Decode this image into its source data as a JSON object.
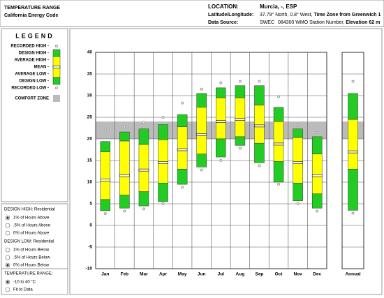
{
  "header": {
    "title": "TEMPERATURE RANGE",
    "subtitle": "California Energy Code",
    "location_label": "LOCATION:",
    "location": "Murcia, -, ESP",
    "latlon_label": "Latitude/Longitude:",
    "latlon": "37.79° North, 0.8° West,",
    "timezone": "Time Zone from Greenwich 1",
    "source_label": "Data Source:",
    "source": "SWEC",
    "station": "084300 WMO Station Number,",
    "elevation": "Elevation 62 m"
  },
  "legend": {
    "title": "LEGEND"
  },
  "controls": {
    "design_high": {
      "label": "DESIGN HIGH: Residential",
      "options": [
        "1% of Hours Above",
        ".5% of Hours Above",
        "0% of Hours Above"
      ],
      "selected": 0
    },
    "design_low": {
      "label": "DESIGN LOW: Residential",
      "options": [
        "1% of Hours Below",
        ".5% of Hours Below",
        "0% of Hours Below"
      ],
      "selected": 2
    },
    "temperature_range": {
      "label": "TEMPERATURE RANGE:",
      "options": [
        "-10 to 40 °C",
        "Fit to Data"
      ],
      "selected": 0
    }
  },
  "chart_data": {
    "type": "range",
    "categories": [
      "Jan",
      "Feb",
      "Mar",
      "Apr",
      "May",
      "Jun",
      "Jul",
      "Aug",
      "Sep",
      "Oct",
      "Nov",
      "Dec",
      "Annual"
    ],
    "series": [
      {
        "name": "RECORDED HIGH -",
        "color": "#999999",
        "values": [
          21.8,
          22.3,
          23.3,
          24.5,
          27.8,
          31,
          32.5,
          32.8,
          32.8,
          29.3,
          22.8,
          21,
          32.8
        ]
      },
      {
        "name": "DESIGN HIGH -",
        "color": "#22cc22",
        "values": [
          19.4,
          21.6,
          22.3,
          23.3,
          25.6,
          30.5,
          31.8,
          32.3,
          32.3,
          27.3,
          22.3,
          20.5,
          30.5
        ]
      },
      {
        "name": "AVERAGE HIGH -",
        "color": "#ffff00",
        "values": [
          17,
          19.5,
          18.7,
          19.8,
          22.8,
          27.3,
          29.5,
          29.5,
          27.8,
          24,
          20.3,
          16.5,
          24.5
        ]
      },
      {
        "name": "MEAN -",
        "color": "#000000",
        "values": [
          10.5,
          11.5,
          12.8,
          14.5,
          17.5,
          21,
          24,
          24.5,
          23,
          18.8,
          14.5,
          11.5,
          17
        ]
      },
      {
        "name": "AVERAGE LOW -",
        "color": "#ffff00",
        "values": [
          6,
          7,
          7.8,
          9.8,
          13,
          16.5,
          20,
          20.5,
          19,
          14.8,
          9.8,
          7.3,
          13
        ]
      },
      {
        "name": "DESIGN LOW -",
        "color": "#22cc22",
        "values": [
          3.4,
          4,
          4.5,
          5.5,
          9.5,
          13.5,
          15.8,
          18.5,
          14.5,
          10,
          5.7,
          4,
          3.5
        ]
      },
      {
        "name": "RECORDED LOW -",
        "color": "#999999",
        "values": [
          3.2,
          3.8,
          4.3,
          5.5,
          9.3,
          13.3,
          15.5,
          18.3,
          14.3,
          10,
          5.5,
          3.8,
          3.3
        ]
      }
    ],
    "comfort_zone": {
      "label": "COMFORT ZONE",
      "range": [
        20,
        24
      ],
      "color": "#bbbbbb"
    },
    "ylim": [
      -10,
      40
    ],
    "yticks": [
      -10,
      -5,
      0,
      5,
      10,
      15,
      20,
      25,
      30,
      35,
      40
    ],
    "grid": true
  }
}
